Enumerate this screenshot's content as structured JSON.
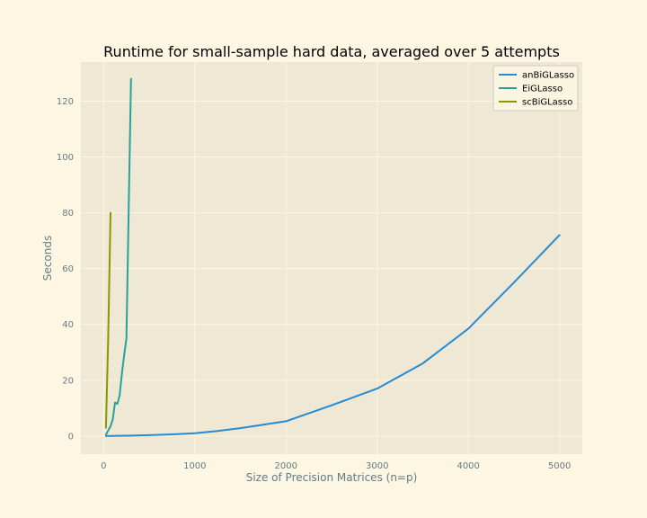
{
  "chart_data": {
    "type": "line",
    "title": "Runtime for small-sample hard data, averaged over 5 attempts",
    "xlabel": "Size of Precision Matrices (n=p)",
    "ylabel": "Seconds",
    "xlim": [
      -250,
      5250
    ],
    "ylim": [
      -6.5,
      134
    ],
    "xticks": [
      0,
      1000,
      2000,
      3000,
      4000,
      5000
    ],
    "yticks": [
      0,
      20,
      40,
      60,
      80,
      100,
      120
    ],
    "grid": true,
    "legend_position": "top-right",
    "colors": {
      "figure_bg": "#fdf6e3",
      "axes_bg": "#eee8d5",
      "grid": "#fdf6e3"
    },
    "series": [
      {
        "name": "anBiGLasso",
        "color": "#268bd2",
        "x": [
          25,
          100,
          250,
          500,
          750,
          1000,
          1250,
          1500,
          2000,
          2500,
          3000,
          3500,
          4000,
          4500,
          5000
        ],
        "y": [
          0.0,
          0.05,
          0.1,
          0.3,
          0.6,
          1.0,
          1.8,
          2.8,
          5.3,
          11.0,
          17.0,
          26.0,
          38.5,
          55.0,
          72.0
        ]
      },
      {
        "name": "EiGLasso",
        "color": "#2aa198",
        "x": [
          25,
          50,
          75,
          100,
          125,
          150,
          175,
          200,
          225,
          250,
          275,
          300
        ],
        "y": [
          0.5,
          2.0,
          3.5,
          6.0,
          12.0,
          11.5,
          14.5,
          22.5,
          29.0,
          35.0,
          83.0,
          128.0
        ]
      },
      {
        "name": "scBiGLasso",
        "color": "#859900",
        "x": [
          25,
          50,
          75
        ],
        "y": [
          3.0,
          35.0,
          80.0
        ]
      }
    ]
  }
}
